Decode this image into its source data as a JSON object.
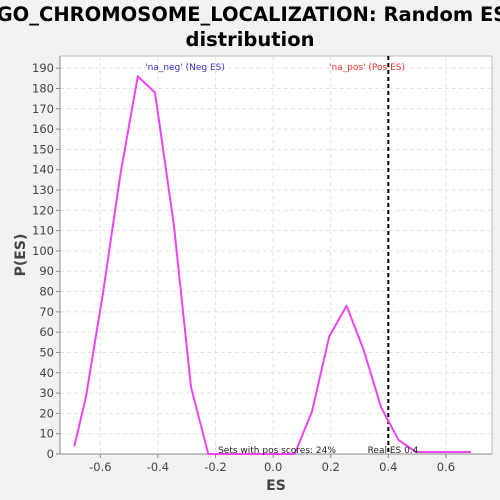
{
  "chart_data": {
    "type": "line",
    "title_line1": "GO_CHROMOSOME_LOCALIZATION: Random ES",
    "title_line2": "distribution",
    "xlabel": "ES",
    "ylabel": "P(ES)",
    "xlim": [
      -0.74,
      0.76
    ],
    "ylim": [
      0,
      196
    ],
    "xticks": [
      -0.6,
      -0.4,
      -0.2,
      0.0,
      0.2,
      0.4,
      0.6
    ],
    "xtick_labels": [
      "-0.6",
      "-0.4",
      "-0.2",
      "0.0",
      "0.2",
      "0.4",
      "0.6"
    ],
    "yticks": [
      0,
      10,
      20,
      30,
      40,
      50,
      60,
      70,
      80,
      90,
      100,
      110,
      120,
      130,
      140,
      150,
      160,
      170,
      180,
      190
    ],
    "grid": true,
    "colors": {
      "line": "#ee44ee",
      "real_es": "#000000",
      "neg_label": "#3333cc",
      "pos_label": "#ee3333",
      "plot_bg": "#ffffff",
      "grid": "#e3e3e3"
    },
    "series": [
      {
        "x": [
          -0.69,
          -0.65,
          -0.59,
          -0.53,
          -0.47,
          -0.41,
          -0.345,
          -0.285,
          -0.225,
          -0.165,
          -0.105,
          -0.045,
          0.015,
          0.075,
          0.135,
          0.195,
          0.255,
          0.315,
          0.375,
          0.435,
          0.495,
          0.555,
          0.615,
          0.685
        ],
        "values": [
          4,
          28,
          80,
          138,
          186,
          178,
          113,
          33,
          0,
          0,
          0,
          0,
          0,
          0,
          21,
          58,
          73,
          51,
          23,
          7,
          1,
          1,
          1,
          1
        ]
      }
    ],
    "real_es": 0.4,
    "annotations": {
      "neg_label": "'na_neg' (Neg ES)",
      "pos_label": "'na_pos' (Pos ES)",
      "pos_scores": "Sets with pos scores: 24%",
      "real_es_label": "Real ES 0.4"
    }
  }
}
